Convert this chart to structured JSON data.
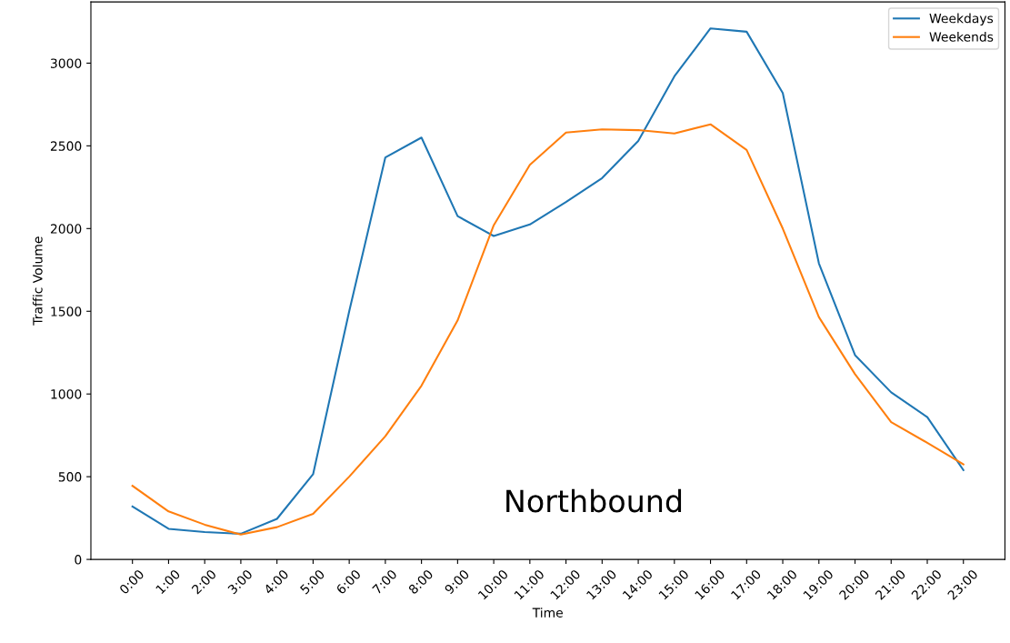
{
  "chart_data": {
    "type": "line",
    "xlabel": "Time",
    "ylabel": "Traffic Volume",
    "categories": [
      "0:00",
      "1:00",
      "2:00",
      "3:00",
      "4:00",
      "5:00",
      "6:00",
      "7:00",
      "8:00",
      "9:00",
      "10:00",
      "11:00",
      "12:00",
      "13:00",
      "14:00",
      "15:00",
      "16:00",
      "17:00",
      "18:00",
      "19:00",
      "20:00",
      "21:00",
      "22:00",
      "23:00"
    ],
    "series": [
      {
        "name": "Weekdays",
        "color": "#1f77b4",
        "values": [
          320,
          185,
          165,
          155,
          245,
          515,
          1500,
          2430,
          2550,
          2075,
          1955,
          2025,
          2160,
          2305,
          2530,
          2920,
          3210,
          3190,
          2820,
          1790,
          1235,
          1010,
          860,
          540
        ]
      },
      {
        "name": "Weekends",
        "color": "#ff7f0e",
        "values": [
          445,
          290,
          210,
          150,
          195,
          275,
          500,
          745,
          1050,
          1445,
          2020,
          2385,
          2580,
          2600,
          2595,
          2575,
          2630,
          2475,
          2000,
          1465,
          1120,
          830,
          705,
          575
        ]
      }
    ],
    "ylim": [
      0,
      3370
    ],
    "yticks": [
      0,
      500,
      1000,
      1500,
      2000,
      2500,
      3000
    ],
    "annotations": [
      "Northbound"
    ],
    "legend": "top right",
    "grid": false,
    "marker": "none",
    "line_style": "solid"
  }
}
